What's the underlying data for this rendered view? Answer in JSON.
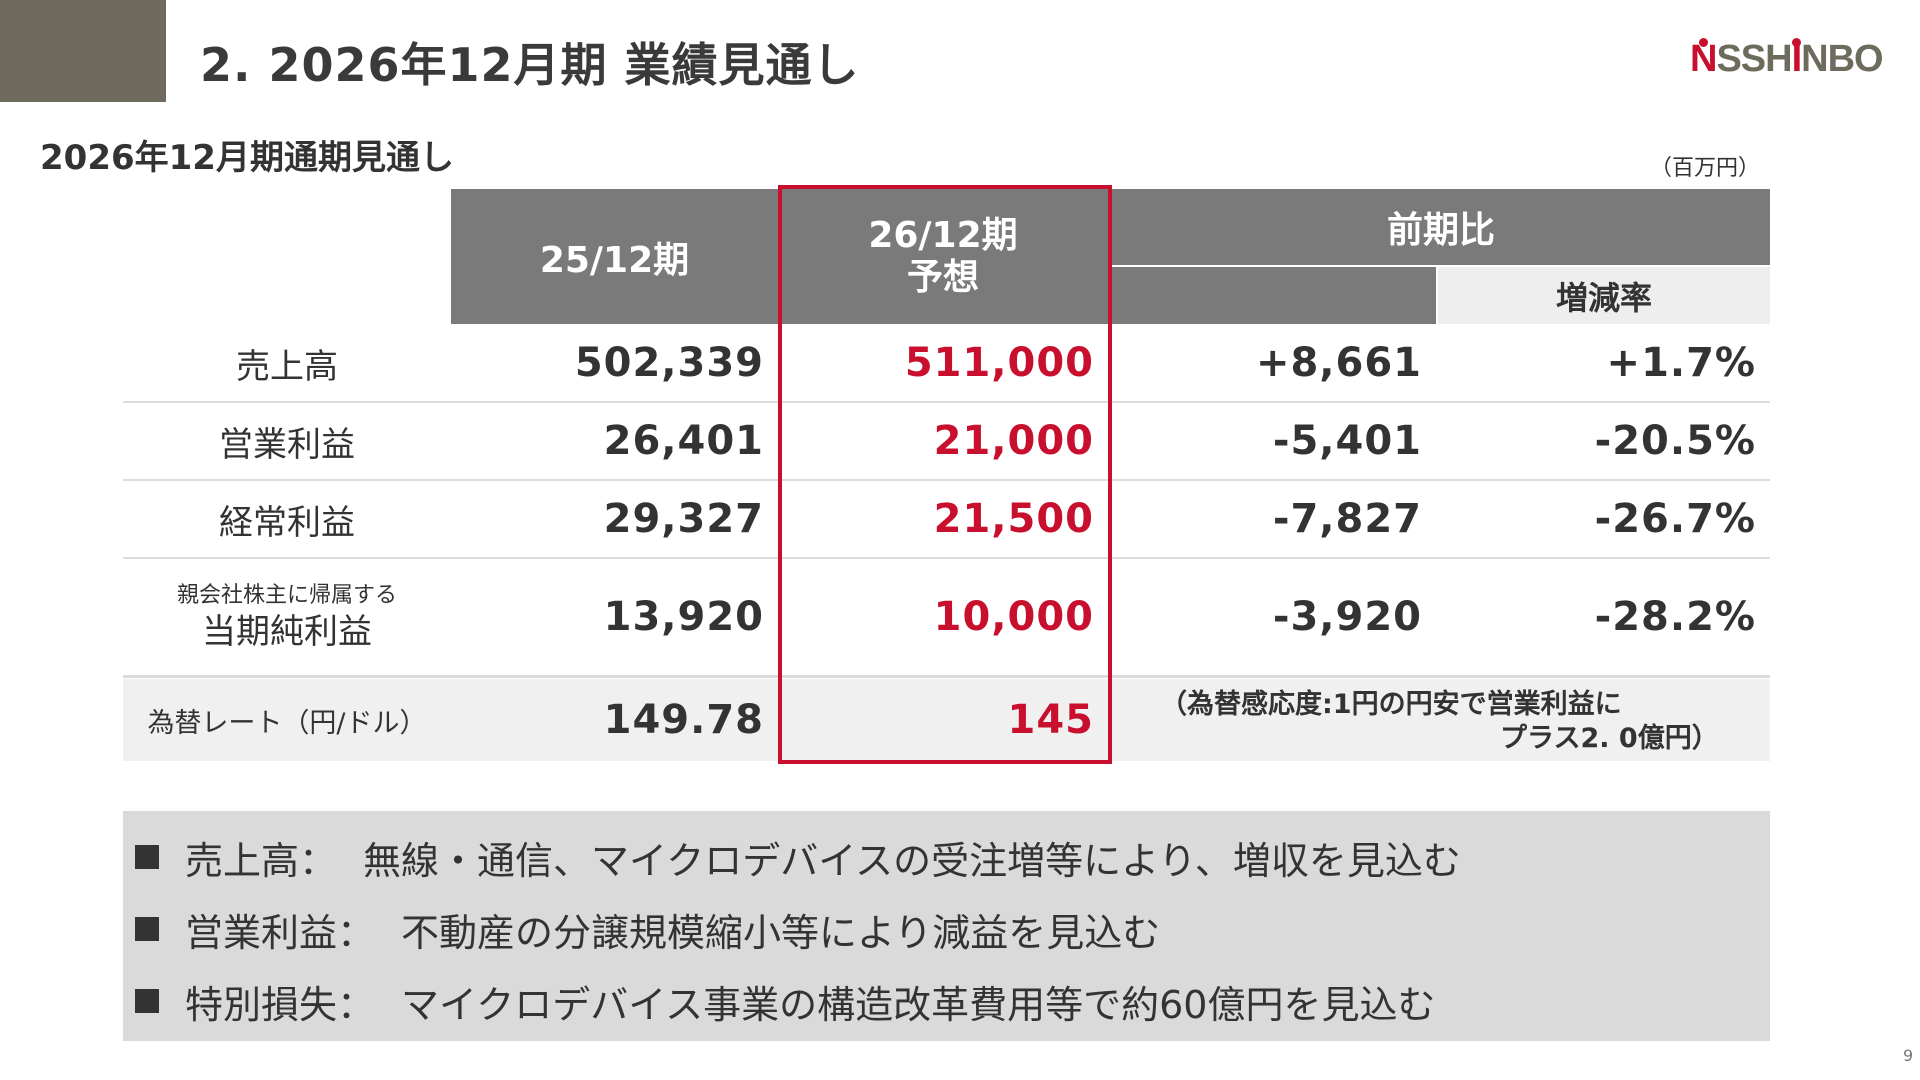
{
  "header": {
    "title": "2. 2026年12月期 業績見通し",
    "logo_text": "NISSHINBO",
    "accent_color": "#6e6a5d",
    "brand_red": "#c8102e"
  },
  "section": {
    "subtitle": "2026年12月期通期見通し",
    "unit": "（百万円）"
  },
  "table": {
    "headers": {
      "prev": "25/12期",
      "forecast_line1": "26/12期",
      "forecast_line2": "予想",
      "yoy": "前期比",
      "yoy_rate": "増減率"
    },
    "rows": [
      {
        "label": "売上高",
        "prev": "502,339",
        "forecast": "511,000",
        "change": "+8,661",
        "rate": "+1.7%"
      },
      {
        "label": "営業利益",
        "prev": "26,401",
        "forecast": "21,000",
        "change": "-5,401",
        "rate": "-20.5%"
      },
      {
        "label": "経常利益",
        "prev": "29,327",
        "forecast": "21,500",
        "change": "-7,827",
        "rate": "-26.7%"
      },
      {
        "label_small": "親会社株主に帰属する",
        "label": "当期純利益",
        "prev": "13,920",
        "forecast": "10,000",
        "change": "-3,920",
        "rate": "-28.2%"
      }
    ],
    "fx": {
      "label": "為替レート（円/ドル）",
      "prev": "149.78",
      "forecast": "145",
      "note_line1": "（為替感応度:1円の円安で営業利益に",
      "note_line2": "プラス2. 0億円）"
    }
  },
  "notes": [
    {
      "head": "売上高：",
      "text": "無線・通信、マイクロデバイスの受注増等により、増収を見込む"
    },
    {
      "head": "営業利益：",
      "text": "不動産の分譲規模縮小等により減益を見込む"
    },
    {
      "head": "特別損失：",
      "text": "マイクロデバイス事業の構造改革費用等で約60億円を見込む"
    }
  ],
  "page_number": "9"
}
